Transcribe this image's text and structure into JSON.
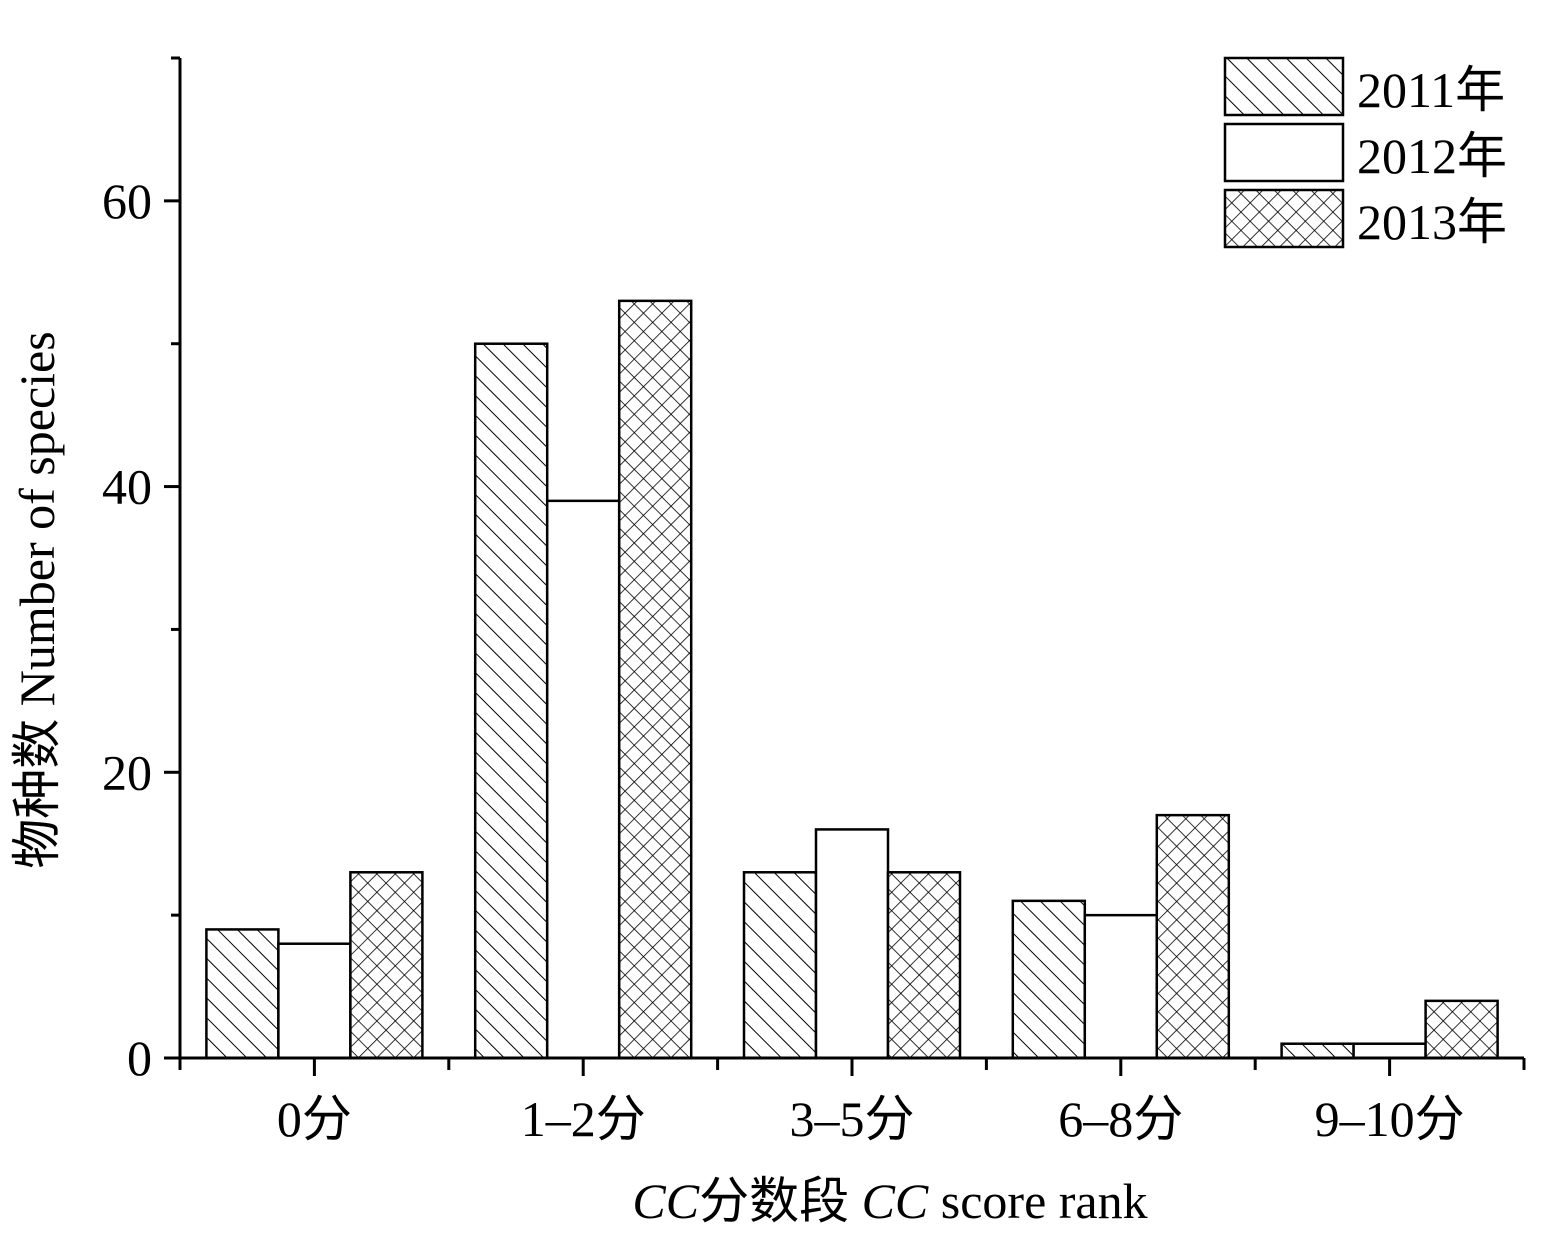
{
  "chart_data": {
    "type": "bar",
    "categories": [
      "0分",
      "1–2分",
      "3–5分",
      "6–8分",
      "9–10分"
    ],
    "series": [
      {
        "name": "2011年",
        "values": [
          9,
          50,
          13,
          11,
          1
        ],
        "pattern": "diagonal-hatch"
      },
      {
        "name": "2012年",
        "values": [
          8,
          39,
          16,
          10,
          1
        ],
        "pattern": "none"
      },
      {
        "name": "2013年",
        "values": [
          13,
          53,
          13,
          17,
          4
        ],
        "pattern": "crosshatch"
      }
    ],
    "title": "",
    "xlabel": {
      "prefix_italic": "CC",
      "middle": "分数段 ",
      "middle_italic": "CC",
      "suffix": " score rank"
    },
    "ylabel": "物种数 Number of species",
    "ylim": [
      0,
      70
    ],
    "yticks": [
      "0",
      "20",
      "40",
      "60"
    ],
    "grid": false,
    "legend_position": "top-right",
    "colors": {
      "stroke": "#000000",
      "fill": "#ffffff"
    }
  }
}
